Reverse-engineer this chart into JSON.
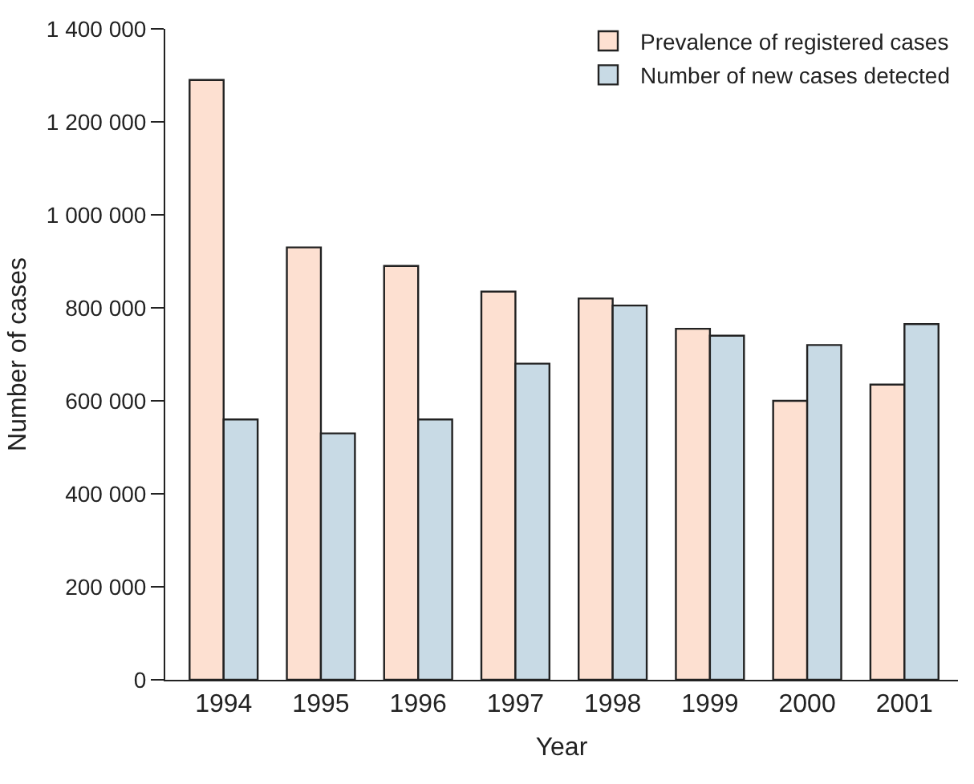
{
  "chart_data": {
    "type": "bar",
    "xlabel": "Year",
    "ylabel": "Number of cases",
    "categories": [
      "1994",
      "1995",
      "1996",
      "1997",
      "1998",
      "1999",
      "2000",
      "2001"
    ],
    "series": [
      {
        "name": "Prevalence of registered cases",
        "color": "#fde0d1",
        "values": [
          1290000,
          930000,
          890000,
          835000,
          820000,
          755000,
          600000,
          635000
        ]
      },
      {
        "name": "Number of new cases detected",
        "color": "#c8dae5",
        "values": [
          560000,
          530000,
          560000,
          680000,
          805000,
          740000,
          720000,
          765000
        ]
      }
    ],
    "ylim": [
      0,
      1400000
    ],
    "yticks": [
      0,
      {
        "value": 200000,
        "label": "200 000"
      },
      {
        "value": 400000,
        "label": "400 000"
      },
      {
        "value": 600000,
        "label": "600 000"
      },
      {
        "value": 800000,
        "label": "800 000"
      },
      {
        "value": 1000000,
        "label": "1 000 000"
      },
      {
        "value": 1200000,
        "label": "1 200 000"
      },
      {
        "value": 1400000,
        "label": "1 400 000"
      }
    ],
    "grid": false,
    "legend": "top right"
  }
}
